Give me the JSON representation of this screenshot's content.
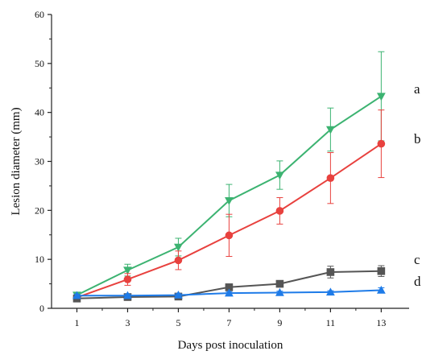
{
  "chart_data": {
    "type": "line",
    "title": "",
    "xlabel": "Days post inoculation",
    "ylabel": "Lesion diameter (mm)",
    "x": [
      1,
      3,
      5,
      7,
      9,
      11,
      13
    ],
    "xticks": [
      1,
      3,
      5,
      7,
      9,
      11,
      13
    ],
    "yticks": [
      0,
      10,
      20,
      30,
      40,
      50,
      60
    ],
    "xlim": [
      0,
      14.1
    ],
    "ylim": [
      0,
      60
    ],
    "grid": false,
    "legend": "none",
    "series": [
      {
        "label": "a",
        "color": "#3cb371",
        "marker": "triangle-down",
        "values": [
          2.7,
          7.8,
          12.5,
          22.0,
          27.2,
          36.5,
          43.3
        ],
        "errors": [
          0.5,
          1.2,
          1.8,
          3.3,
          2.9,
          4.4,
          9.1
        ]
      },
      {
        "label": "b",
        "color": "#e8413e",
        "marker": "circle",
        "values": [
          2.2,
          5.9,
          9.8,
          14.9,
          19.9,
          26.6,
          33.6
        ],
        "errors": [
          0.5,
          1.2,
          1.9,
          4.3,
          2.7,
          5.2,
          6.9
        ]
      },
      {
        "label": "c",
        "color": "#555555",
        "marker": "square",
        "values": [
          2.0,
          2.3,
          2.4,
          4.3,
          5.0,
          7.4,
          7.6
        ],
        "errors": [
          0.3,
          0.5,
          0.4,
          0.5,
          0.4,
          1.2,
          1.1
        ]
      },
      {
        "label": "d",
        "color": "#1e7be8",
        "marker": "triangle-up",
        "values": [
          2.6,
          2.6,
          2.7,
          3.1,
          3.2,
          3.3,
          3.7
        ],
        "errors": [
          0.3,
          0.3,
          0.3,
          0.3,
          0.3,
          0.3,
          0.5
        ]
      }
    ]
  }
}
